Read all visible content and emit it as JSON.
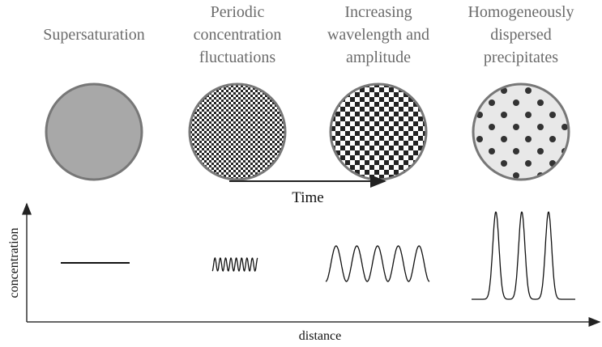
{
  "stages": [
    {
      "label": [
        "Supersaturation"
      ]
    },
    {
      "label": [
        "Periodic",
        "concentration",
        "fluctuations"
      ]
    },
    {
      "label": [
        "Increasing",
        "wavelength and",
        "amplitude"
      ]
    },
    {
      "label": [
        "Homogeneously",
        "dispersed",
        "precipitates"
      ]
    }
  ],
  "time_label": "Time",
  "y_axis_label": "concentration",
  "x_axis_label": "distance"
}
